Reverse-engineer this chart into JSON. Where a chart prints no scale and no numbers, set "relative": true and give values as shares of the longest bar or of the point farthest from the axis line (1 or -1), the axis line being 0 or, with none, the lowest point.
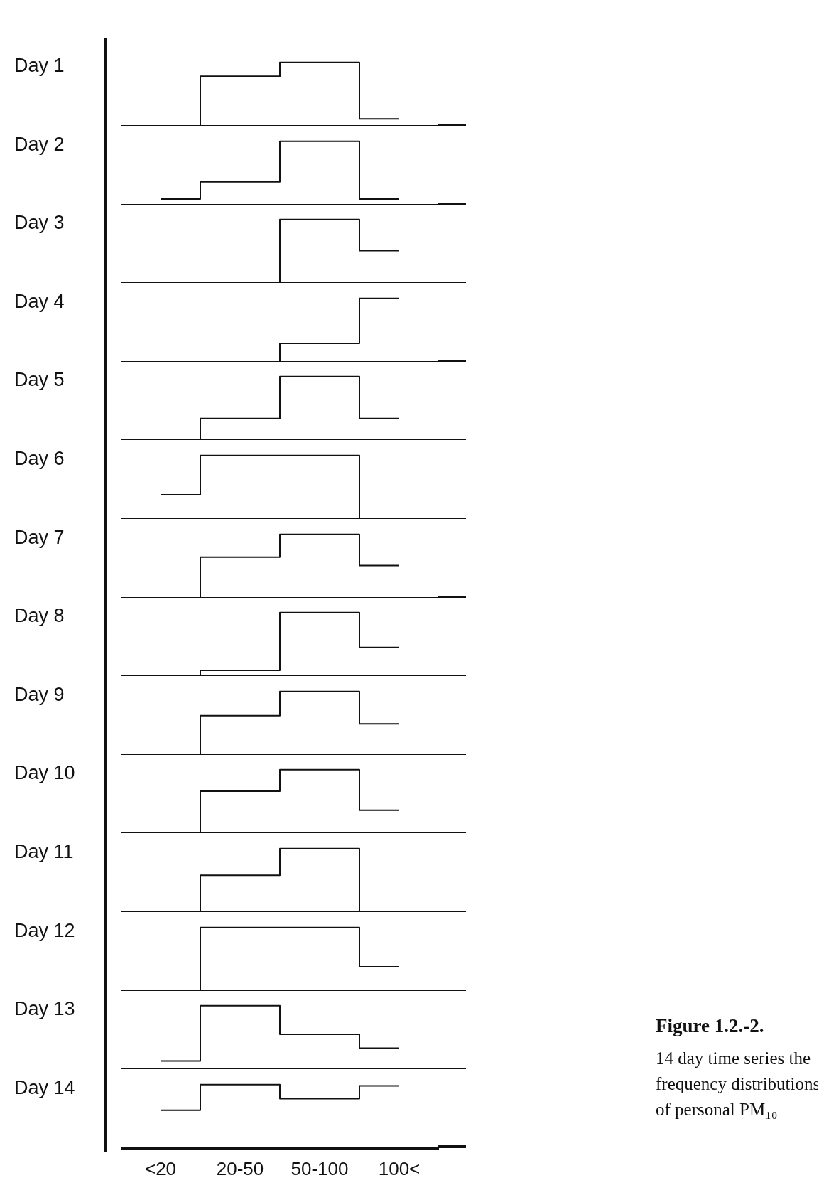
{
  "chart_data": [
    {
      "type": "step",
      "title": "Day 1",
      "categories": [
        null,
        null,
        null,
        null
      ],
      "relative": true,
      "color": "#111111",
      "values": [
        0,
        0.78,
        1,
        0.11
      ],
      "tick_labels": false
    },
    {
      "type": "step",
      "title": "Day 2",
      "categories": [
        null,
        null,
        null,
        null
      ],
      "relative": true,
      "color": "#111111",
      "values": [
        0.09,
        0.36,
        1,
        0.09
      ],
      "tick_labels": false
    },
    {
      "type": "step",
      "title": "Day 3",
      "categories": [
        null,
        null,
        null,
        null
      ],
      "relative": true,
      "color": "#111111",
      "values": [
        0,
        0,
        1,
        0.51
      ],
      "tick_labels": false
    },
    {
      "type": "step",
      "title": "Day 4",
      "categories": [
        null,
        null,
        null,
        null
      ],
      "relative": true,
      "color": "#111111",
      "values": [
        0,
        0,
        0.29,
        1
      ],
      "tick_labels": false
    },
    {
      "type": "step",
      "title": "Day 5",
      "categories": [
        null,
        null,
        null,
        null
      ],
      "relative": true,
      "color": "#111111",
      "values": [
        0,
        0.34,
        1,
        0.34
      ],
      "tick_labels": false
    },
    {
      "type": "step",
      "title": "Day 6",
      "categories": [
        null,
        null,
        null,
        null
      ],
      "relative": true,
      "color": "#111111",
      "values": [
        0.38,
        1,
        1,
        0
      ],
      "tick_labels": false
    },
    {
      "type": "step",
      "title": "Day 7",
      "categories": [
        null,
        null,
        null,
        null
      ],
      "relative": true,
      "color": "#111111",
      "values": [
        0,
        0.64,
        1,
        0.51
      ],
      "tick_labels": false
    },
    {
      "type": "step",
      "title": "Day 8",
      "categories": [
        null,
        null,
        null,
        null
      ],
      "relative": true,
      "color": "#111111",
      "values": [
        0,
        0.09,
        1,
        0.45
      ],
      "tick_labels": false
    },
    {
      "type": "step",
      "title": "Day 9",
      "categories": [
        null,
        null,
        null,
        null
      ],
      "relative": true,
      "color": "#111111",
      "values": [
        0,
        0.62,
        1,
        0.49
      ],
      "tick_labels": false
    },
    {
      "type": "step",
      "title": "Day 10",
      "categories": [
        null,
        null,
        null,
        null
      ],
      "relative": true,
      "color": "#111111",
      "values": [
        0,
        0.66,
        1,
        0.36
      ],
      "tick_labels": false
    },
    {
      "type": "step",
      "title": "Day 11",
      "categories": [
        null,
        null,
        null,
        null
      ],
      "relative": true,
      "color": "#111111",
      "values": [
        0,
        0.58,
        1,
        0
      ],
      "tick_labels": false
    },
    {
      "type": "step",
      "title": "Day 12",
      "categories": [
        null,
        null,
        null,
        null
      ],
      "relative": true,
      "color": "#111111",
      "values": [
        0,
        1,
        1,
        0.38
      ],
      "tick_labels": false
    },
    {
      "type": "step",
      "title": "Day 13",
      "categories": [
        null,
        null,
        null,
        null
      ],
      "relative": true,
      "color": "#111111",
      "values": [
        0.13,
        1,
        0.55,
        0.33
      ],
      "tick_labels": false
    },
    {
      "type": "step",
      "title": "Day 14",
      "categories": [
        "<20",
        "20-50",
        "50-100",
        "100<"
      ],
      "relative": true,
      "color": "#111111",
      "values": [
        0.6,
        1,
        0.78,
        0.98
      ],
      "tick_labels": "x",
      "annotations": [
        "Figure 1.2.-2.",
        "14 day time series the frequency distributions of personal PM₁₀"
      ]
    }
  ]
}
